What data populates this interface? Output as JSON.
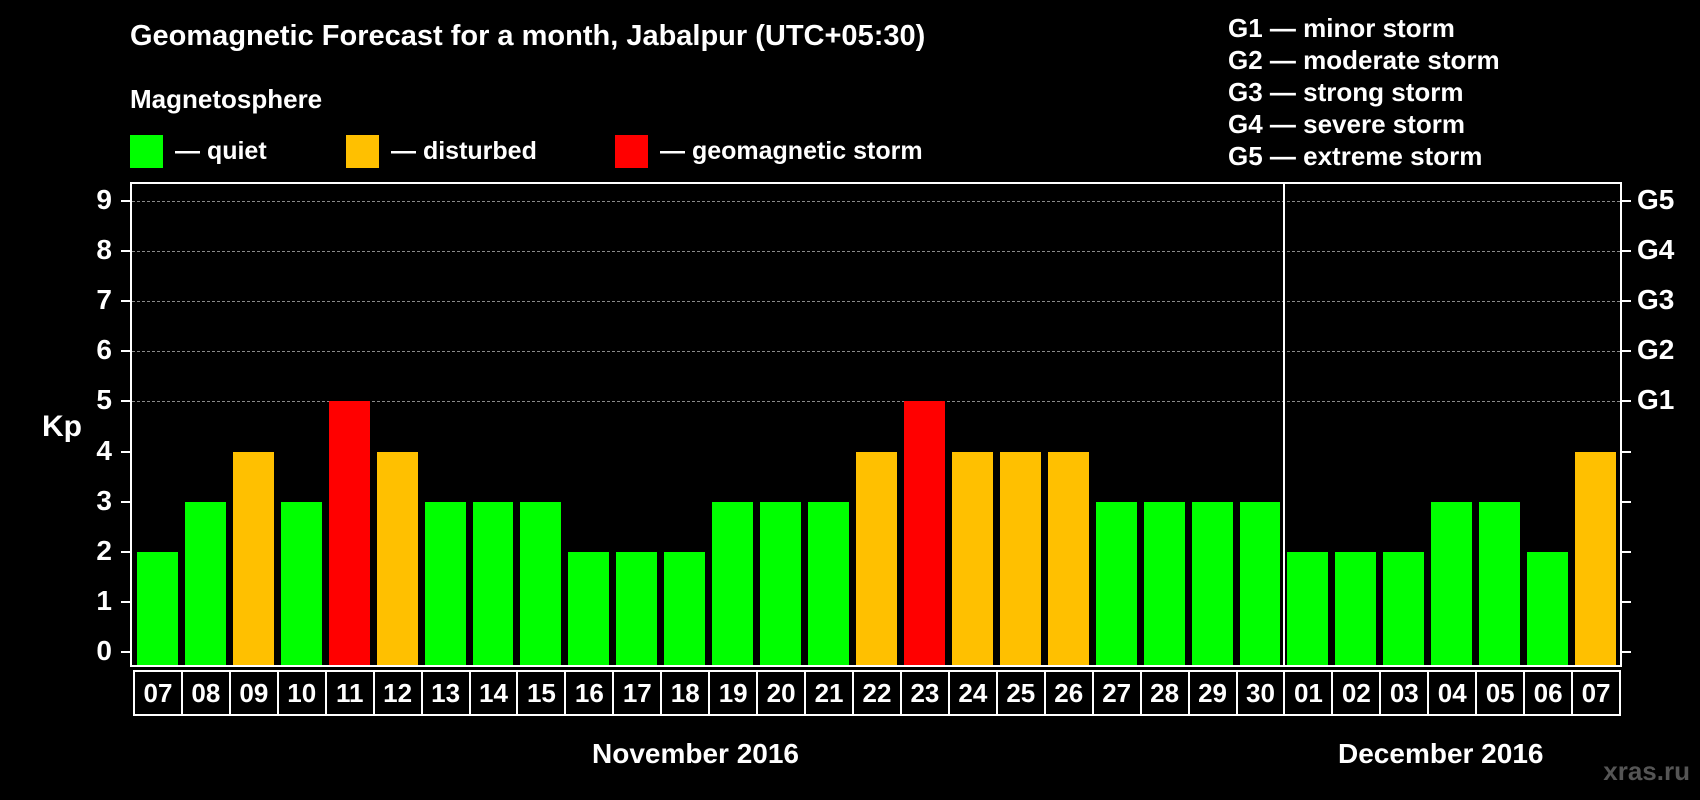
{
  "header": {
    "title": "Geomagnetic Forecast for a month, Jabalpur (UTC+05:30)",
    "subtitle": "Magnetosphere"
  },
  "legend": [
    {
      "label": "— quiet",
      "color": "#00FF00"
    },
    {
      "label": "— disturbed",
      "color": "#FFC000"
    },
    {
      "label": "— geomagnetic storm",
      "color": "#FF0000"
    }
  ],
  "storm_scale": [
    "G1 — minor storm",
    "G2 — moderate storm",
    "G3 — strong storm",
    "G4 — severe storm",
    "G5 — extreme storm"
  ],
  "axis": {
    "ylabel": "Kp",
    "yticks": [
      "0",
      "1",
      "2",
      "3",
      "4",
      "5",
      "6",
      "7",
      "8",
      "9"
    ],
    "right_ticks": [
      {
        "kp": 5,
        "label": "G1"
      },
      {
        "kp": 6,
        "label": "G2"
      },
      {
        "kp": 7,
        "label": "G3"
      },
      {
        "kp": 8,
        "label": "G4"
      },
      {
        "kp": 9,
        "label": "G5"
      }
    ]
  },
  "months": [
    {
      "label": "November 2016"
    },
    {
      "label": "December 2016"
    }
  ],
  "watermark": "xras.ru",
  "colors": {
    "quiet": "#00FF00",
    "disturbed": "#FFC000",
    "storm": "#FF0000"
  },
  "chart_data": {
    "type": "bar",
    "title": "Geomagnetic Forecast for a month, Jabalpur (UTC+05:30)",
    "xlabel": "",
    "ylabel": "Kp",
    "ylim": [
      0,
      9
    ],
    "grid": "horizontal dashed at Kp 5–9",
    "secondary_axis": {
      "5": "G1",
      "6": "G2",
      "7": "G3",
      "8": "G4",
      "9": "G5"
    },
    "categories": [
      "07",
      "08",
      "09",
      "10",
      "11",
      "12",
      "13",
      "14",
      "15",
      "16",
      "17",
      "18",
      "19",
      "20",
      "21",
      "22",
      "23",
      "24",
      "25",
      "26",
      "27",
      "28",
      "29",
      "30",
      "01",
      "02",
      "03",
      "04",
      "05",
      "06",
      "07"
    ],
    "month_groups": [
      {
        "label": "November 2016",
        "start": 0,
        "end": 23
      },
      {
        "label": "December 2016",
        "start": 24,
        "end": 30
      }
    ],
    "values": [
      2,
      3,
      4,
      3,
      5,
      4,
      3,
      3,
      3,
      2,
      2,
      2,
      3,
      3,
      3,
      4,
      5,
      4,
      4,
      4,
      3,
      3,
      3,
      3,
      2,
      2,
      2,
      3,
      3,
      2,
      4
    ],
    "status": [
      "quiet",
      "quiet",
      "disturbed",
      "quiet",
      "storm",
      "disturbed",
      "quiet",
      "quiet",
      "quiet",
      "quiet",
      "quiet",
      "quiet",
      "quiet",
      "quiet",
      "quiet",
      "disturbed",
      "storm",
      "disturbed",
      "disturbed",
      "disturbed",
      "quiet",
      "quiet",
      "quiet",
      "quiet",
      "quiet",
      "quiet",
      "quiet",
      "quiet",
      "quiet",
      "quiet",
      "disturbed"
    ],
    "legend": [
      "quiet",
      "disturbed",
      "geomagnetic storm"
    ]
  }
}
